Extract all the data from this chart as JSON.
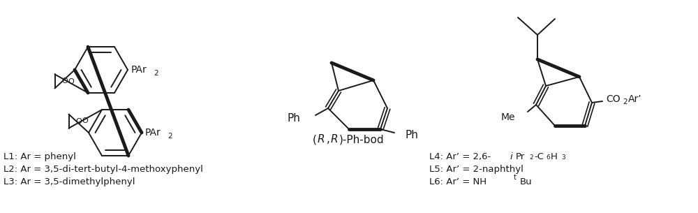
{
  "bg_color": "#ffffff",
  "fig_width": 10.0,
  "fig_height": 3.05,
  "dpi": 100,
  "text_color": "#1a1a1a",
  "font_size_labels": 9.5,
  "label_left_lines": [
    "L1: Ar = phenyl",
    "L2: Ar = 3,5-di-tert-butyl-4-methoxyphenyl",
    "L3: Ar = 3,5-dimethylphenyl"
  ],
  "center_caption_italic": "R,R",
  "center_caption_rest": "-Ph-bod"
}
